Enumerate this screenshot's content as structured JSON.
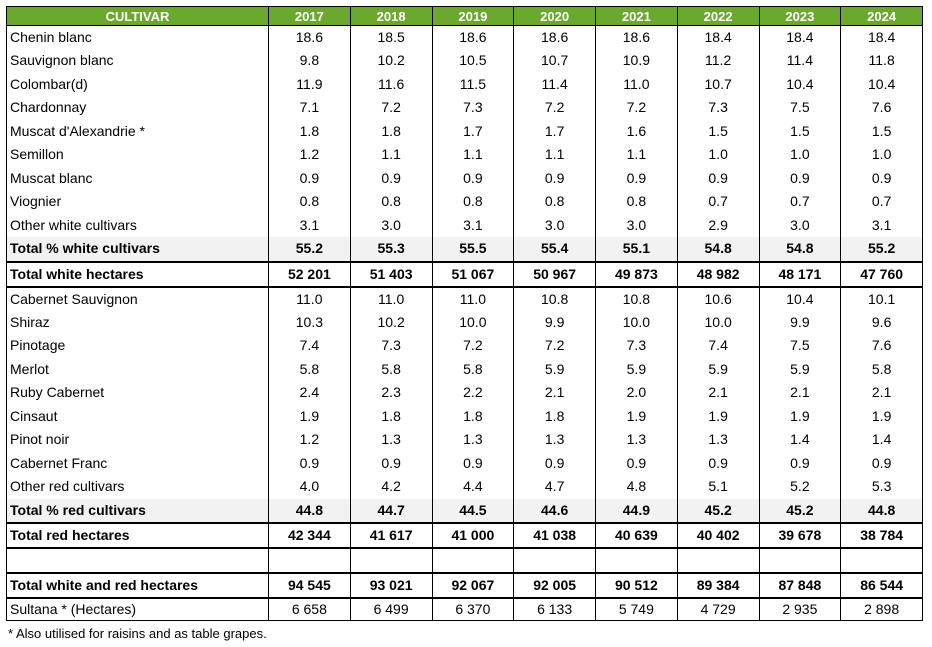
{
  "header": {
    "cultivar_label": "CULTIVAR",
    "years": [
      "2017",
      "2018",
      "2019",
      "2020",
      "2021",
      "2022",
      "2023",
      "2024"
    ]
  },
  "white": [
    {
      "name": "Chenin blanc",
      "values": [
        "18.6",
        "18.5",
        "18.6",
        "18.6",
        "18.6",
        "18.4",
        "18.4",
        "18.4"
      ]
    },
    {
      "name": "Sauvignon blanc",
      "values": [
        "9.8",
        "10.2",
        "10.5",
        "10.7",
        "10.9",
        "11.2",
        "11.4",
        "11.8"
      ]
    },
    {
      "name": "Colombar(d)",
      "values": [
        "11.9",
        "11.6",
        "11.5",
        "11.4",
        "11.0",
        "10.7",
        "10.4",
        "10.4"
      ]
    },
    {
      "name": "Chardonnay",
      "values": [
        "7.1",
        "7.2",
        "7.3",
        "7.2",
        "7.2",
        "7.3",
        "7.5",
        "7.6"
      ]
    },
    {
      "name": "Muscat d'Alexandrie *",
      "values": [
        "1.8",
        "1.8",
        "1.7",
        "1.7",
        "1.6",
        "1.5",
        "1.5",
        "1.5"
      ]
    },
    {
      "name": "Semillon",
      "values": [
        "1.2",
        "1.1",
        "1.1",
        "1.1",
        "1.1",
        "1.0",
        "1.0",
        "1.0"
      ]
    },
    {
      "name": "Muscat blanc",
      "values": [
        "0.9",
        "0.9",
        "0.9",
        "0.9",
        "0.9",
        "0.9",
        "0.9",
        "0.9"
      ]
    },
    {
      "name": "Viognier",
      "values": [
        "0.8",
        "0.8",
        "0.8",
        "0.8",
        "0.8",
        "0.7",
        "0.7",
        "0.7"
      ]
    },
    {
      "name": "Other white cultivars",
      "values": [
        "3.1",
        "3.0",
        "3.1",
        "3.0",
        "3.0",
        "2.9",
        "3.0",
        "3.1"
      ]
    }
  ],
  "white_total_pct": {
    "name": "Total % white cultivars",
    "values": [
      "55.2",
      "55.3",
      "55.5",
      "55.4",
      "55.1",
      "54.8",
      "54.8",
      "55.2"
    ]
  },
  "white_total_ha": {
    "name": "Total white hectares",
    "values": [
      "52 201",
      "51 403",
      "51 067",
      "50 967",
      "49 873",
      "48 982",
      "48 171",
      "47 760"
    ]
  },
  "red": [
    {
      "name": "Cabernet Sauvignon",
      "values": [
        "11.0",
        "11.0",
        "11.0",
        "10.8",
        "10.8",
        "10.6",
        "10.4",
        "10.1"
      ]
    },
    {
      "name": "Shiraz",
      "values": [
        "10.3",
        "10.2",
        "10.0",
        "9.9",
        "10.0",
        "10.0",
        "9.9",
        "9.6"
      ]
    },
    {
      "name": "Pinotage",
      "values": [
        "7.4",
        "7.3",
        "7.2",
        "7.2",
        "7.3",
        "7.4",
        "7.5",
        "7.6"
      ]
    },
    {
      "name": "Merlot",
      "values": [
        "5.8",
        "5.8",
        "5.8",
        "5.9",
        "5.9",
        "5.9",
        "5.9",
        "5.8"
      ]
    },
    {
      "name": "Ruby Cabernet",
      "values": [
        "2.4",
        "2.3",
        "2.2",
        "2.1",
        "2.0",
        "2.1",
        "2.1",
        "2.1"
      ]
    },
    {
      "name": "Cinsaut",
      "values": [
        "1.9",
        "1.8",
        "1.8",
        "1.8",
        "1.9",
        "1.9",
        "1.9",
        "1.9"
      ]
    },
    {
      "name": "Pinot noir",
      "values": [
        "1.2",
        "1.3",
        "1.3",
        "1.3",
        "1.3",
        "1.3",
        "1.4",
        "1.4"
      ]
    },
    {
      "name": "Cabernet Franc",
      "values": [
        "0.9",
        "0.9",
        "0.9",
        "0.9",
        "0.9",
        "0.9",
        "0.9",
        "0.9"
      ]
    },
    {
      "name": "Other red cultivars",
      "values": [
        "4.0",
        "4.2",
        "4.4",
        "4.7",
        "4.8",
        "5.1",
        "5.2",
        "5.3"
      ]
    }
  ],
  "red_total_pct": {
    "name": "Total % red cultivars",
    "values": [
      "44.8",
      "44.7",
      "44.5",
      "44.6",
      "44.9",
      "45.2",
      "45.2",
      "44.8"
    ]
  },
  "red_total_ha": {
    "name": "Total red hectares",
    "values": [
      "42 344",
      "41 617",
      "41 000",
      "41 038",
      "40 639",
      "40 402",
      "39 678",
      "38 784"
    ]
  },
  "grand_total": {
    "name": "Total white and red hectares",
    "values": [
      "94 545",
      "93 021",
      "92 067",
      "92 005",
      "90 512",
      "89 384",
      "87 848",
      "86 544"
    ]
  },
  "sultana": {
    "name": "Sultana * (Hectares)",
    "values": [
      "6 658",
      "6 499",
      "6 370",
      "6 133",
      "5 749",
      "4 729",
      "2 935",
      "2 898"
    ]
  },
  "footnote": "* Also utilised for raisins and as table grapes.",
  "colors": {
    "header_bg": "#6aa92e",
    "subtotal_bg": "#f2f2f2"
  }
}
